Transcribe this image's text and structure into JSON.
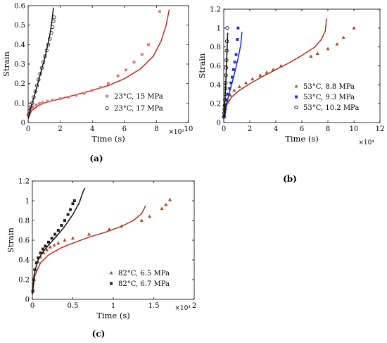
{
  "chart_data": [
    {
      "type": "scatter",
      "panel": "(a)",
      "xlabel": "Time (s)",
      "ylabel": "Strain",
      "xlim": [
        0,
        10000
      ],
      "ylim": [
        0,
        0.6
      ],
      "x_multiplier": "×10³",
      "x_ticks": [
        "0",
        "2",
        "4",
        "6",
        "8",
        "10"
      ],
      "y_ticks": [
        "0",
        "0.1",
        "0.2",
        "0.3",
        "0.4",
        "0.5",
        "0.6"
      ],
      "legend_position": "bottom-right",
      "grid": false,
      "series": [
        {
          "name": "23°C, 15 MPa",
          "marker": "square",
          "color": "#d98080",
          "points": [
            [
              30,
              0.04
            ],
            [
              150,
              0.065
            ],
            [
              300,
              0.08
            ],
            [
              500,
              0.09
            ],
            [
              700,
              0.097
            ],
            [
              900,
              0.103
            ],
            [
              1200,
              0.11
            ],
            [
              1500,
              0.115
            ],
            [
              2000,
              0.122
            ],
            [
              2500,
              0.13
            ],
            [
              3000,
              0.14
            ],
            [
              3500,
              0.15
            ],
            [
              4000,
              0.165
            ],
            [
              4500,
              0.18
            ],
            [
              5000,
              0.2
            ],
            [
              5600,
              0.24
            ],
            [
              6100,
              0.27
            ],
            [
              6600,
              0.31
            ],
            [
              7100,
              0.35
            ],
            [
              7500,
              0.4
            ],
            [
              8200,
              0.57
            ]
          ],
          "model_curve": [
            [
              0,
              0.02
            ],
            [
              200,
              0.06
            ],
            [
              600,
              0.085
            ],
            [
              1000,
              0.1
            ],
            [
              2000,
              0.122
            ],
            [
              3000,
              0.143
            ],
            [
              4000,
              0.165
            ],
            [
              5000,
              0.19
            ],
            [
              6000,
              0.225
            ],
            [
              7000,
              0.275
            ],
            [
              7800,
              0.34
            ],
            [
              8300,
              0.42
            ],
            [
              8600,
              0.5
            ],
            [
              8800,
              0.58
            ]
          ],
          "model_color": "#b03020"
        },
        {
          "name": "23°C, 17 MPa",
          "marker": "circle",
          "color": "#222222",
          "points": [
            [
              20,
              0.04
            ],
            [
              80,
              0.06
            ],
            [
              150,
              0.08
            ],
            [
              250,
              0.1
            ],
            [
              350,
              0.13
            ],
            [
              450,
              0.16
            ],
            [
              550,
              0.19
            ],
            [
              650,
              0.22
            ],
            [
              750,
              0.25
            ],
            [
              850,
              0.28
            ],
            [
              950,
              0.31
            ],
            [
              1050,
              0.34
            ],
            [
              1150,
              0.37
            ],
            [
              1250,
              0.4
            ],
            [
              1350,
              0.43
            ],
            [
              1450,
              0.46
            ],
            [
              1520,
              0.49
            ],
            [
              1580,
              0.52
            ],
            [
              1620,
              0.54
            ]
          ],
          "model_curve": [
            [
              0,
              0.02
            ],
            [
              100,
              0.06
            ],
            [
              250,
              0.1
            ],
            [
              400,
              0.14
            ],
            [
              600,
              0.2
            ],
            [
              800,
              0.26
            ],
            [
              1000,
              0.32
            ],
            [
              1200,
              0.39
            ],
            [
              1350,
              0.45
            ],
            [
              1480,
              0.52
            ],
            [
              1580,
              0.59
            ]
          ],
          "model_color": "#111111"
        }
      ]
    },
    {
      "type": "scatter",
      "panel": "(b)",
      "xlabel": "Time (s)",
      "ylabel": "Strain",
      "xlim": [
        0,
        120000
      ],
      "ylim": [
        0,
        1.2
      ],
      "x_multiplier": "×10⁴",
      "x_ticks": [
        "0",
        "2",
        "4",
        "6",
        "8",
        "10",
        "12"
      ],
      "y_ticks": [
        "0",
        "0.2",
        "0.4",
        "0.6",
        "0.8",
        "1",
        "1.2"
      ],
      "legend_position": "bottom-right",
      "grid": false,
      "series": [
        {
          "name": "53°C, 8.8 MPa",
          "marker": "triangle",
          "color": "#a0522d",
          "points": [
            [
              500,
              0.08
            ],
            [
              1500,
              0.15
            ],
            [
              3000,
              0.22
            ],
            [
              5000,
              0.29
            ],
            [
              8000,
              0.34
            ],
            [
              12000,
              0.38
            ],
            [
              17000,
              0.42
            ],
            [
              22000,
              0.46
            ],
            [
              28000,
              0.5
            ],
            [
              33000,
              0.53
            ],
            [
              38000,
              0.56
            ],
            [
              44000,
              0.6
            ],
            [
              67000,
              0.7
            ],
            [
              72000,
              0.73
            ],
            [
              80000,
              0.78
            ],
            [
              87000,
              0.83
            ],
            [
              92000,
              0.9
            ],
            [
              100000,
              1.0
            ]
          ],
          "model_curve": [
            [
              0,
              0.05
            ],
            [
              2000,
              0.18
            ],
            [
              6000,
              0.27
            ],
            [
              12000,
              0.34
            ],
            [
              20000,
              0.41
            ],
            [
              30000,
              0.49
            ],
            [
              40000,
              0.56
            ],
            [
              50000,
              0.63
            ],
            [
              60000,
              0.71
            ],
            [
              70000,
              0.8
            ],
            [
              75000,
              0.88
            ],
            [
              78000,
              0.97
            ],
            [
              79000,
              1.1
            ]
          ],
          "model_color": "#b03020"
        },
        {
          "name": "53°C, 9.3 MPa",
          "marker": "square",
          "color": "#2233cc",
          "points": [
            [
              300,
              0.07
            ],
            [
              800,
              0.12
            ],
            [
              1500,
              0.18
            ],
            [
              2500,
              0.24
            ],
            [
              3500,
              0.3
            ],
            [
              4500,
              0.36
            ],
            [
              5500,
              0.42
            ],
            [
              6500,
              0.48
            ],
            [
              7500,
              0.56
            ],
            [
              8500,
              0.64
            ],
            [
              9500,
              0.72
            ],
            [
              10500,
              0.88
            ],
            [
              11000,
              1.0
            ]
          ],
          "model_curve": [
            [
              0,
              0.04
            ],
            [
              1000,
              0.14
            ],
            [
              3000,
              0.25
            ],
            [
              5000,
              0.35
            ],
            [
              7000,
              0.45
            ],
            [
              9000,
              0.56
            ],
            [
              11000,
              0.68
            ],
            [
              13000,
              0.82
            ],
            [
              14000,
              0.96
            ]
          ],
          "model_color": "#1a2fd6"
        },
        {
          "name": "53°C, 10.2 MPa",
          "marker": "circle",
          "color": "#111111",
          "points": [
            [
              100,
              0.06
            ],
            [
              300,
              0.1
            ],
            [
              500,
              0.14
            ],
            [
              700,
              0.18
            ],
            [
              900,
              0.24
            ],
            [
              1100,
              0.3
            ],
            [
              1300,
              0.36
            ],
            [
              1500,
              0.42
            ],
            [
              1700,
              0.5
            ],
            [
              1900,
              0.58
            ],
            [
              2100,
              0.66
            ],
            [
              2300,
              0.76
            ],
            [
              2500,
              0.86
            ],
            [
              2700,
              1.0
            ]
          ],
          "model_curve": [
            [
              0,
              0.04
            ],
            [
              500,
              0.14
            ],
            [
              1000,
              0.26
            ],
            [
              1500,
              0.4
            ],
            [
              2000,
              0.56
            ],
            [
              2500,
              0.74
            ],
            [
              3000,
              0.95
            ]
          ],
          "model_color": "#111111"
        }
      ]
    },
    {
      "type": "scatter",
      "panel": "(c)",
      "xlabel": "Time (s)",
      "ylabel": "Strain",
      "xlim": [
        0,
        20000
      ],
      "ylim": [
        0,
        1.2
      ],
      "x_multiplier": "×10⁴",
      "x_ticks": [
        "0",
        "0.5",
        "1",
        "1.5",
        "2"
      ],
      "y_ticks": [
        "0",
        "0.2",
        "0.4",
        "0.6",
        "0.8",
        "1",
        "1.2"
      ],
      "legend_position": "bottom-right",
      "grid": false,
      "series": [
        {
          "name": "82°C, 6.5 MPa",
          "marker": "triangle",
          "color": "#a0522d",
          "points": [
            [
              80,
              0.1
            ],
            [
              200,
              0.2
            ],
            [
              400,
              0.3
            ],
            [
              700,
              0.38
            ],
            [
              1000,
              0.43
            ],
            [
              1400,
              0.47
            ],
            [
              1800,
              0.5
            ],
            [
              2200,
              0.53
            ],
            [
              2700,
              0.55
            ],
            [
              3200,
              0.57
            ],
            [
              4000,
              0.6
            ],
            [
              5000,
              0.62
            ],
            [
              7000,
              0.66
            ],
            [
              9500,
              0.71
            ],
            [
              11000,
              0.74
            ],
            [
              13500,
              0.8
            ],
            [
              14500,
              0.84
            ],
            [
              16000,
              0.92
            ],
            [
              16500,
              0.96
            ],
            [
              17000,
              1.01
            ]
          ],
          "model_curve": [
            [
              0,
              0.05
            ],
            [
              300,
              0.24
            ],
            [
              1000,
              0.37
            ],
            [
              2000,
              0.45
            ],
            [
              3500,
              0.52
            ],
            [
              5000,
              0.57
            ],
            [
              7000,
              0.63
            ],
            [
              9000,
              0.68
            ],
            [
              11000,
              0.74
            ],
            [
              12500,
              0.8
            ],
            [
              13500,
              0.87
            ],
            [
              14000,
              0.95
            ]
          ],
          "model_color": "#b03020"
        },
        {
          "name": "82°C, 6.7 MPa",
          "marker": "square",
          "color": "#222222",
          "points": [
            [
              50,
              0.08
            ],
            [
              150,
              0.2
            ],
            [
              300,
              0.3
            ],
            [
              500,
              0.37
            ],
            [
              700,
              0.42
            ],
            [
              1000,
              0.47
            ],
            [
              1300,
              0.51
            ],
            [
              1600,
              0.54
            ],
            [
              2000,
              0.58
            ],
            [
              2400,
              0.62
            ],
            [
              2800,
              0.66
            ],
            [
              3200,
              0.7
            ],
            [
              3600,
              0.75
            ],
            [
              4000,
              0.8
            ],
            [
              4400,
              0.86
            ],
            [
              4700,
              0.91
            ],
            [
              5000,
              0.97
            ],
            [
              5200,
              1.0
            ]
          ],
          "model_curve": [
            [
              0,
              0.05
            ],
            [
              200,
              0.24
            ],
            [
              600,
              0.38
            ],
            [
              1200,
              0.47
            ],
            [
              2000,
              0.55
            ],
            [
              3000,
              0.64
            ],
            [
              4000,
              0.74
            ],
            [
              5000,
              0.86
            ],
            [
              5800,
              0.98
            ],
            [
              6300,
              1.1
            ],
            [
              6500,
              1.13
            ]
          ],
          "model_color": "#111111"
        }
      ]
    }
  ],
  "captions": {
    "a": "(a)",
    "b": "(b)",
    "c": "(c)"
  }
}
